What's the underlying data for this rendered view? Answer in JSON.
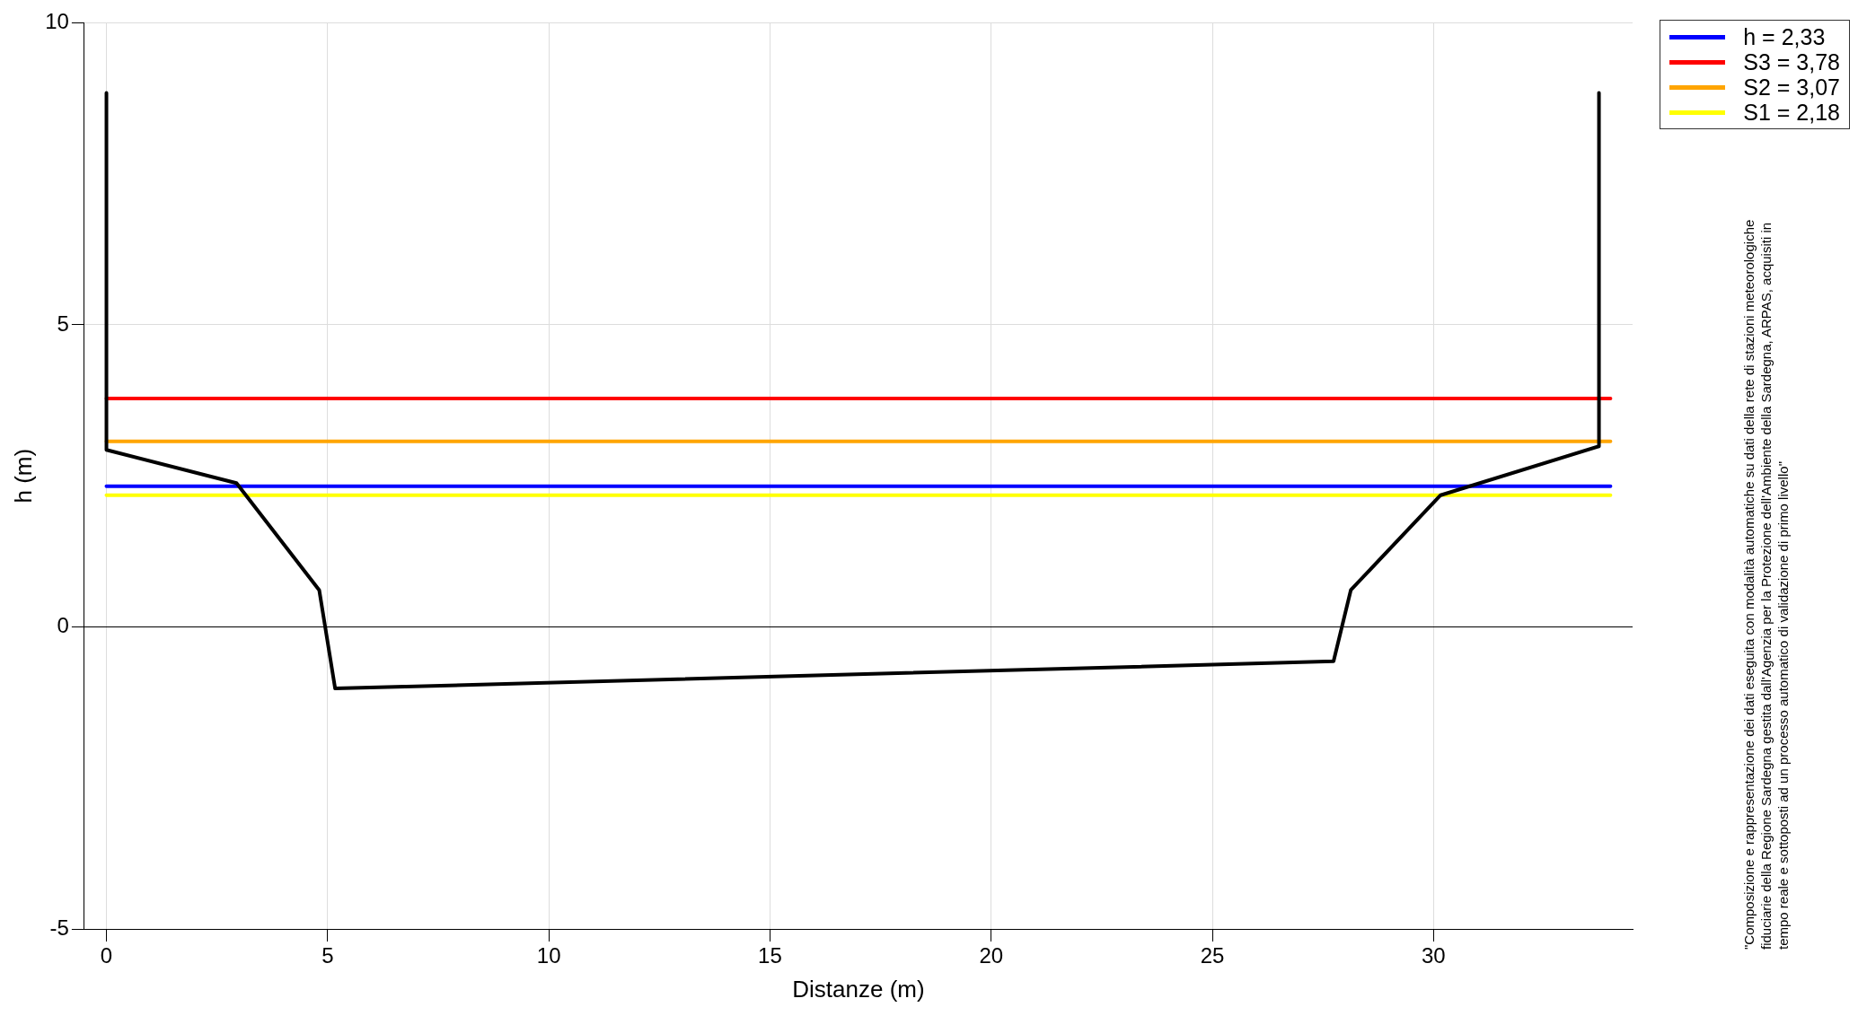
{
  "chart_data": {
    "type": "line",
    "xlabel": "Distanze (m)",
    "ylabel": "h (m)",
    "xlim": [
      -0.5,
      34.5
    ],
    "xticks": [
      0,
      5,
      10,
      15,
      20,
      25,
      30
    ],
    "ylim": [
      -5,
      10
    ],
    "yticks": [
      -5,
      0,
      5,
      10
    ],
    "grid": true,
    "legend": "top right",
    "marker": "none",
    "line_style": "solid",
    "series": [
      {
        "color": "#000000",
        "x": [
          0,
          0,
          2.94,
          4.81,
          5.17,
          27.74,
          28.13,
          30.16,
          33.74,
          33.74
        ],
        "values": [
          8.84,
          2.93,
          2.38,
          0.61,
          -1.02,
          -0.57,
          0.61,
          2.18,
          2.99,
          8.84
        ]
      },
      {
        "name": "h = 2,33",
        "color": "#0000ff",
        "x": [
          0,
          34
        ],
        "values": [
          2.33,
          2.33
        ]
      },
      {
        "name": "S3 = 3,78",
        "color": "#ff0000",
        "x": [
          0,
          34
        ],
        "values": [
          3.78,
          3.78
        ]
      },
      {
        "name": "S2 = 3,07",
        "color": "#ffa500",
        "x": [
          0,
          34
        ],
        "values": [
          3.07,
          3.07
        ]
      },
      {
        "name": "S1 = 2,18",
        "color": "#ffff00",
        "x": [
          0,
          34
        ],
        "values": [
          2.18,
          2.18
        ]
      }
    ],
    "annotations": [
      "\"Composizione e rappresentazione dei dati eseguita con modalità automatiche su dati della rete di stazioni meteorologiche fiduciarie della Regione Sardegna gestita dall'Agenzia per la Protezione dell'Ambiente della Sardegna, ARPAS, acquisiti in tempo reale e sottoposti ad un processo automatico di validazione di primo livello\""
    ]
  }
}
